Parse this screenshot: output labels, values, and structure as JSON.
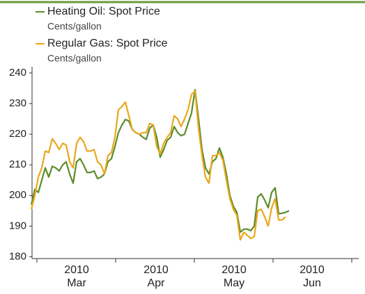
{
  "chart_data": {
    "type": "line",
    "categories": [
      null,
      null,
      null,
      null,
      null,
      null,
      null,
      null,
      null,
      null,
      null,
      null,
      null,
      null,
      null,
      null,
      null,
      null,
      null,
      null,
      null,
      null,
      null,
      null,
      null,
      null,
      null,
      null,
      null,
      null,
      null,
      null,
      null,
      null,
      null,
      null,
      null,
      null,
      null,
      null,
      null,
      null,
      null,
      null,
      null,
      null,
      null,
      null,
      null,
      null,
      null,
      null,
      null,
      null,
      null,
      null,
      null,
      null,
      null,
      null,
      null,
      null,
      null,
      null,
      null,
      null,
      null,
      null,
      null,
      null,
      null,
      null,
      null,
      null,
      null
    ],
    "x_labels": [
      "2010\nMar",
      "2010\nApr",
      "2010\nMay",
      "2010\nJun"
    ],
    "series": [
      {
        "name": "Heating Oil: Spot Price",
        "unit": "Cents/gallon",
        "color": "#5b8c2a",
        "values": [
          197,
          202,
          201,
          205,
          209,
          206,
          209.5,
          209,
          208,
          210,
          211,
          207,
          204,
          211,
          212,
          210,
          207.5,
          207.5,
          208,
          205.5,
          206,
          207,
          211,
          212,
          216,
          220.5,
          223,
          224.8,
          224.3,
          221.5,
          220.5,
          220,
          219,
          218.3,
          222,
          223,
          219,
          212.5,
          215,
          218,
          219,
          222.5,
          220.5,
          219.5,
          220,
          223.5,
          227,
          234.5,
          225,
          215,
          209,
          207,
          211,
          212,
          215.5,
          212.5,
          207,
          200,
          196.5,
          194.5,
          188,
          189,
          189,
          188.5,
          190,
          199.5,
          200.5,
          198.5,
          196,
          201,
          202.5,
          194,
          194.2,
          194.5,
          195
        ]
      },
      {
        "name": "Regular Gas: Spot Price",
        "unit": "Cents/gallon",
        "color": "#e9a71c",
        "values": [
          195.5,
          200,
          206,
          209,
          214.5,
          214,
          218.5,
          217,
          215,
          217,
          216.5,
          211,
          209,
          217,
          219,
          217.5,
          214.5,
          214.5,
          215,
          211,
          210,
          207,
          213,
          214,
          219,
          228,
          229,
          230.5,
          226,
          221.5,
          220.5,
          220,
          220.5,
          220.5,
          223.5,
          223,
          216,
          213.5,
          217,
          219,
          220.5,
          226,
          225,
          222.5,
          225,
          228,
          233,
          234,
          222,
          213,
          206,
          204,
          213,
          213,
          214,
          211.5,
          205,
          199,
          195.5,
          193.5,
          185.5,
          188,
          187,
          186,
          186.5,
          195,
          195.5,
          193,
          190,
          196,
          199,
          192,
          192,
          193,
          null
        ]
      }
    ],
    "ylim": [
      179.4,
      241.8
    ],
    "yticks": [
      180,
      190,
      200,
      210,
      220,
      230,
      240
    ],
    "grid": false
  }
}
